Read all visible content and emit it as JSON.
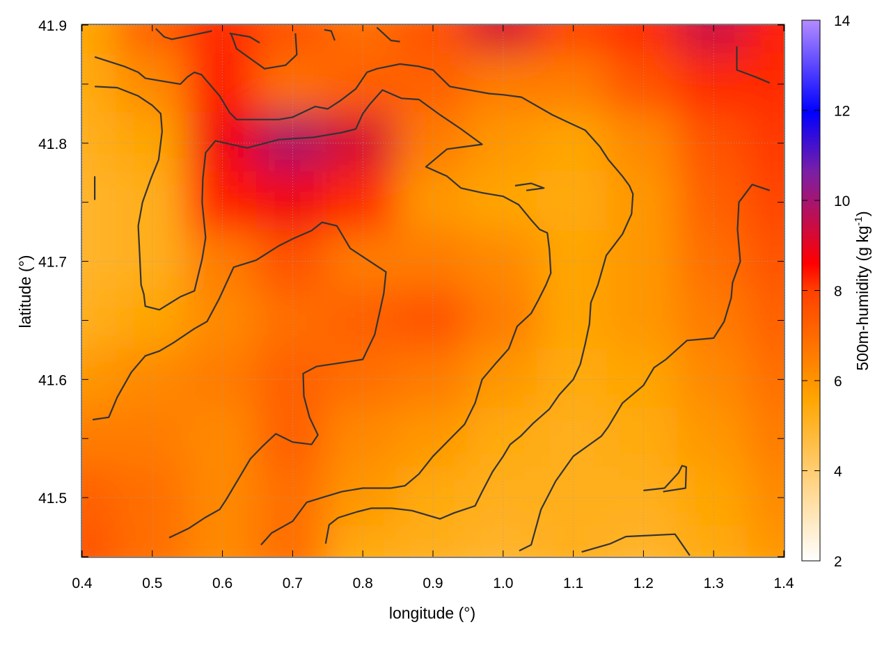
{
  "chart_data": {
    "type": "heatmap",
    "title": "",
    "xlabel": "longitude (°)",
    "ylabel": "latitude (°)",
    "colorbar_label": "500m-humidity (g kg",
    "colorbar_label_sup": "-1",
    "colorbar_label_end": ")",
    "xlim": [
      0.4,
      1.4
    ],
    "ylim": [
      41.45,
      41.9
    ],
    "clim": [
      2,
      14
    ],
    "xticks": [
      "0.4",
      "0.5",
      "0.6",
      "0.7",
      "0.8",
      "0.9",
      "1.0",
      "1.1",
      "1.2",
      "1.3",
      "1.4"
    ],
    "yticks": [
      "41.5",
      "41.6",
      "41.7",
      "41.8",
      "41.9"
    ],
    "cticks": [
      "2",
      "4",
      "6",
      "8",
      "10",
      "12",
      "14"
    ],
    "grid": true,
    "colormap": [
      "#ffffff",
      "#ffa500",
      "#ff0000",
      "#0000ff",
      "#b38cff"
    ],
    "field": {
      "x": [
        0.4,
        0.5,
        0.6,
        0.7,
        0.8,
        0.9,
        1.0,
        1.1,
        1.2,
        1.3,
        1.4
      ],
      "y": [
        41.9,
        41.85,
        41.8,
        41.75,
        41.7,
        41.65,
        41.6,
        41.55,
        41.5,
        41.45
      ],
      "values": [
        [
          5.6,
          6.6,
          7.4,
          6.8,
          6.4,
          6.8,
          8.6,
          7.0,
          7.4,
          8.8,
          7.6
        ],
        [
          5.4,
          6.0,
          7.6,
          6.4,
          6.6,
          6.6,
          6.2,
          6.2,
          6.8,
          7.4,
          7.4
        ],
        [
          5.2,
          5.6,
          8.2,
          9.2,
          8.6,
          6.2,
          5.8,
          5.6,
          6.0,
          6.8,
          7.2
        ],
        [
          5.0,
          5.2,
          7.6,
          8.2,
          7.4,
          5.8,
          5.6,
          5.4,
          5.8,
          6.6,
          7.0
        ],
        [
          5.0,
          5.2,
          6.2,
          6.8,
          6.2,
          6.2,
          6.0,
          5.6,
          5.8,
          6.4,
          6.8
        ],
        [
          5.2,
          5.6,
          6.0,
          6.4,
          6.6,
          6.8,
          6.2,
          5.6,
          5.8,
          6.2,
          6.6
        ],
        [
          5.8,
          6.0,
          6.2,
          6.6,
          6.4,
          6.2,
          5.8,
          5.4,
          5.6,
          6.0,
          6.4
        ],
        [
          6.2,
          6.2,
          6.0,
          6.6,
          6.0,
          5.8,
          5.4,
          5.2,
          5.4,
          5.8,
          6.2
        ],
        [
          6.6,
          6.4,
          6.0,
          6.4,
          5.8,
          5.4,
          5.2,
          5.2,
          5.2,
          5.6,
          6.0
        ],
        [
          6.8,
          6.4,
          6.0,
          6.4,
          5.4,
          5.2,
          5.0,
          5.2,
          5.0,
          5.4,
          5.8
        ]
      ]
    },
    "contours": [
      [
        [
          0.418,
          41.873
        ],
        [
          0.46,
          41.865
        ],
        [
          0.48,
          41.86
        ],
        [
          0.49,
          41.855
        ],
        [
          0.54,
          41.85
        ],
        [
          0.55,
          41.856
        ],
        [
          0.56,
          41.86
        ],
        [
          0.57,
          41.858
        ],
        [
          0.596,
          41.84
        ],
        [
          0.61,
          41.826
        ],
        [
          0.62,
          41.82
        ],
        [
          0.68,
          41.82
        ],
        [
          0.7,
          41.822
        ],
        [
          0.732,
          41.831
        ],
        [
          0.75,
          41.829
        ],
        [
          0.768,
          41.836
        ],
        [
          0.79,
          41.846
        ],
        [
          0.806,
          41.86
        ],
        [
          0.82,
          41.863
        ],
        [
          0.853,
          41.867
        ],
        [
          0.88,
          41.865
        ],
        [
          0.9,
          41.862
        ],
        [
          0.924,
          41.848
        ],
        [
          0.98,
          41.842
        ],
        [
          1.0,
          41.841
        ],
        [
          1.026,
          41.839
        ],
        [
          1.07,
          41.824
        ],
        [
          1.095,
          41.817
        ],
        [
          1.117,
          41.811
        ],
        [
          1.138,
          41.797
        ],
        [
          1.15,
          41.786
        ],
        [
          1.17,
          41.772
        ],
        [
          1.18,
          41.764
        ],
        [
          1.185,
          41.757
        ],
        [
          1.183,
          41.74
        ],
        [
          1.17,
          41.723
        ],
        [
          1.147,
          41.705
        ],
        [
          1.135,
          41.68
        ],
        [
          1.125,
          41.665
        ],
        [
          1.123,
          41.647
        ],
        [
          1.117,
          41.63
        ],
        [
          1.11,
          41.613
        ],
        [
          1.1,
          41.6
        ],
        [
          1.08,
          41.587
        ],
        [
          1.066,
          41.575
        ],
        [
          1.043,
          41.563
        ],
        [
          1.025,
          41.552
        ],
        [
          1.01,
          41.545
        ],
        [
          1.0,
          41.535
        ],
        [
          0.985,
          41.522
        ],
        [
          0.97,
          41.505
        ],
        [
          0.96,
          41.493
        ],
        [
          0.93,
          41.487
        ],
        [
          0.91,
          41.482
        ],
        [
          0.87,
          41.489
        ],
        [
          0.841,
          41.491
        ],
        [
          0.812,
          41.491
        ],
        [
          0.792,
          41.488
        ],
        [
          0.765,
          41.483
        ],
        [
          0.752,
          41.477
        ],
        [
          0.747,
          41.461
        ]
      ],
      [
        [
          0.418,
          41.848
        ],
        [
          0.45,
          41.847
        ],
        [
          0.48,
          41.84
        ],
        [
          0.5,
          41.832
        ],
        [
          0.512,
          41.825
        ],
        [
          0.514,
          41.81
        ],
        [
          0.509,
          41.786
        ],
        [
          0.498,
          41.77
        ],
        [
          0.486,
          41.75
        ],
        [
          0.48,
          41.73
        ],
        [
          0.482,
          41.705
        ],
        [
          0.484,
          41.68
        ],
        [
          0.488,
          41.672
        ],
        [
          0.49,
          41.662
        ],
        [
          0.51,
          41.659
        ],
        [
          0.54,
          41.67
        ],
        [
          0.56,
          41.675
        ],
        [
          0.571,
          41.702
        ],
        [
          0.576,
          41.72
        ],
        [
          0.571,
          41.75
        ],
        [
          0.572,
          41.77
        ],
        [
          0.576,
          41.792
        ],
        [
          0.59,
          41.802
        ],
        [
          0.635,
          41.796
        ],
        [
          0.68,
          41.803
        ],
        [
          0.73,
          41.805
        ],
        [
          0.77,
          41.809
        ],
        [
          0.79,
          41.812
        ],
        [
          0.8,
          41.825
        ],
        [
          0.81,
          41.833
        ],
        [
          0.828,
          41.845
        ],
        [
          0.855,
          41.838
        ],
        [
          0.88,
          41.837
        ],
        [
          0.91,
          41.824
        ],
        [
          0.94,
          41.812
        ],
        [
          0.97,
          41.799
        ],
        [
          0.945,
          41.797
        ],
        [
          0.92,
          41.795
        ],
        [
          0.89,
          41.78
        ],
        [
          0.92,
          41.772
        ],
        [
          0.94,
          41.762
        ],
        [
          0.97,
          41.758
        ],
        [
          1.0,
          41.755
        ],
        [
          1.022,
          41.748
        ],
        [
          1.04,
          41.735
        ],
        [
          1.052,
          41.727
        ],
        [
          1.063,
          41.724
        ],
        [
          1.066,
          41.71
        ],
        [
          1.068,
          41.69
        ],
        [
          1.061,
          41.68
        ],
        [
          1.05,
          41.667
        ],
        [
          1.04,
          41.656
        ],
        [
          1.02,
          41.645
        ],
        [
          1.008,
          41.626
        ],
        [
          0.99,
          41.614
        ],
        [
          0.97,
          41.6
        ],
        [
          0.96,
          41.58
        ],
        [
          0.945,
          41.562
        ],
        [
          0.93,
          41.553
        ],
        [
          0.9,
          41.535
        ],
        [
          0.88,
          41.52
        ],
        [
          0.86,
          41.51
        ],
        [
          0.84,
          41.508
        ],
        [
          0.8,
          41.508
        ],
        [
          0.77,
          41.505
        ],
        [
          0.742,
          41.5
        ],
        [
          0.72,
          41.496
        ],
        [
          0.7,
          41.48
        ],
        [
          0.67,
          41.47
        ],
        [
          0.655,
          41.46
        ]
      ],
      [
        [
          0.415,
          41.566
        ],
        [
          0.438,
          41.568
        ],
        [
          0.45,
          41.585
        ],
        [
          0.47,
          41.606
        ],
        [
          0.49,
          41.62
        ],
        [
          0.51,
          41.624
        ],
        [
          0.53,
          41.631
        ],
        [
          0.56,
          41.643
        ],
        [
          0.578,
          41.649
        ],
        [
          0.595,
          41.668
        ],
        [
          0.616,
          41.695
        ],
        [
          0.648,
          41.701
        ],
        [
          0.68,
          41.713
        ],
        [
          0.7,
          41.719
        ],
        [
          0.727,
          41.726
        ],
        [
          0.742,
          41.733
        ],
        [
          0.763,
          41.73
        ],
        [
          0.782,
          41.711
        ],
        [
          0.81,
          41.7
        ],
        [
          0.833,
          41.691
        ],
        [
          0.83,
          41.673
        ],
        [
          0.817,
          41.638
        ],
        [
          0.8,
          41.617
        ],
        [
          0.768,
          41.614
        ],
        [
          0.734,
          41.611
        ],
        [
          0.715,
          41.605
        ],
        [
          0.716,
          41.586
        ],
        [
          0.724,
          41.568
        ],
        [
          0.736,
          41.553
        ],
        [
          0.727,
          41.545
        ],
        [
          0.7,
          41.547
        ],
        [
          0.676,
          41.554
        ],
        [
          0.658,
          41.544
        ],
        [
          0.64,
          41.533
        ],
        [
          0.621,
          41.514
        ],
        [
          0.605,
          41.498
        ],
        [
          0.596,
          41.49
        ],
        [
          0.575,
          41.483
        ],
        [
          0.552,
          41.474
        ],
        [
          0.524,
          41.466
        ]
      ],
      [
        [
          0.418,
          41.752
        ],
        [
          0.418,
          41.772
        ]
      ],
      [
        [
          0.505,
          41.897
        ],
        [
          0.517,
          41.89
        ],
        [
          0.528,
          41.888
        ],
        [
          0.553,
          41.891
        ],
        [
          0.585,
          41.895
        ]
      ],
      [
        [
          0.612,
          41.893
        ],
        [
          0.62,
          41.88
        ],
        [
          0.66,
          41.863
        ],
        [
          0.69,
          41.866
        ],
        [
          0.706,
          41.875
        ],
        [
          0.704,
          41.893
        ]
      ],
      [
        [
          0.61,
          41.893
        ],
        [
          0.639,
          41.89
        ],
        [
          0.653,
          41.885
        ]
      ],
      [
        [
          0.82,
          41.898
        ],
        [
          0.84,
          41.887
        ],
        [
          0.853,
          41.886
        ]
      ],
      [
        [
          1.017,
          41.764
        ],
        [
          1.04,
          41.766
        ],
        [
          1.058,
          41.762
        ],
        [
          1.033,
          41.76
        ]
      ],
      [
        [
          1.023,
          41.455
        ],
        [
          1.04,
          41.46
        ],
        [
          1.054,
          41.49
        ],
        [
          1.075,
          41.514
        ],
        [
          1.1,
          41.535
        ],
        [
          1.14,
          41.552
        ],
        [
          1.15,
          41.56
        ],
        [
          1.17,
          41.58
        ],
        [
          1.2,
          41.595
        ],
        [
          1.215,
          41.61
        ],
        [
          1.232,
          41.617
        ],
        [
          1.262,
          41.633
        ],
        [
          1.3,
          41.635
        ],
        [
          1.315,
          41.649
        ],
        [
          1.325,
          41.669
        ],
        [
          1.327,
          41.682
        ],
        [
          1.338,
          41.7
        ],
        [
          1.334,
          41.727
        ],
        [
          1.336,
          41.75
        ],
        [
          1.355,
          41.765
        ],
        [
          1.38,
          41.76
        ]
      ],
      [
        [
          1.2,
          41.506
        ],
        [
          1.23,
          41.508
        ],
        [
          1.25,
          41.521
        ],
        [
          1.255,
          41.527
        ],
        [
          1.261,
          41.526
        ],
        [
          1.26,
          41.508
        ],
        [
          1.228,
          41.505
        ]
      ],
      [
        [
          1.112,
          41.454
        ],
        [
          1.153,
          41.461
        ],
        [
          1.175,
          41.467
        ],
        [
          1.245,
          41.469
        ],
        [
          1.266,
          41.451
        ]
      ],
      [
        [
          1.333,
          41.882
        ],
        [
          1.333,
          41.862
        ],
        [
          1.36,
          41.856
        ],
        [
          1.38,
          41.851
        ]
      ],
      [
        [
          0.745,
          41.896
        ],
        [
          0.755,
          41.895
        ],
        [
          0.76,
          41.887
        ]
      ]
    ]
  }
}
